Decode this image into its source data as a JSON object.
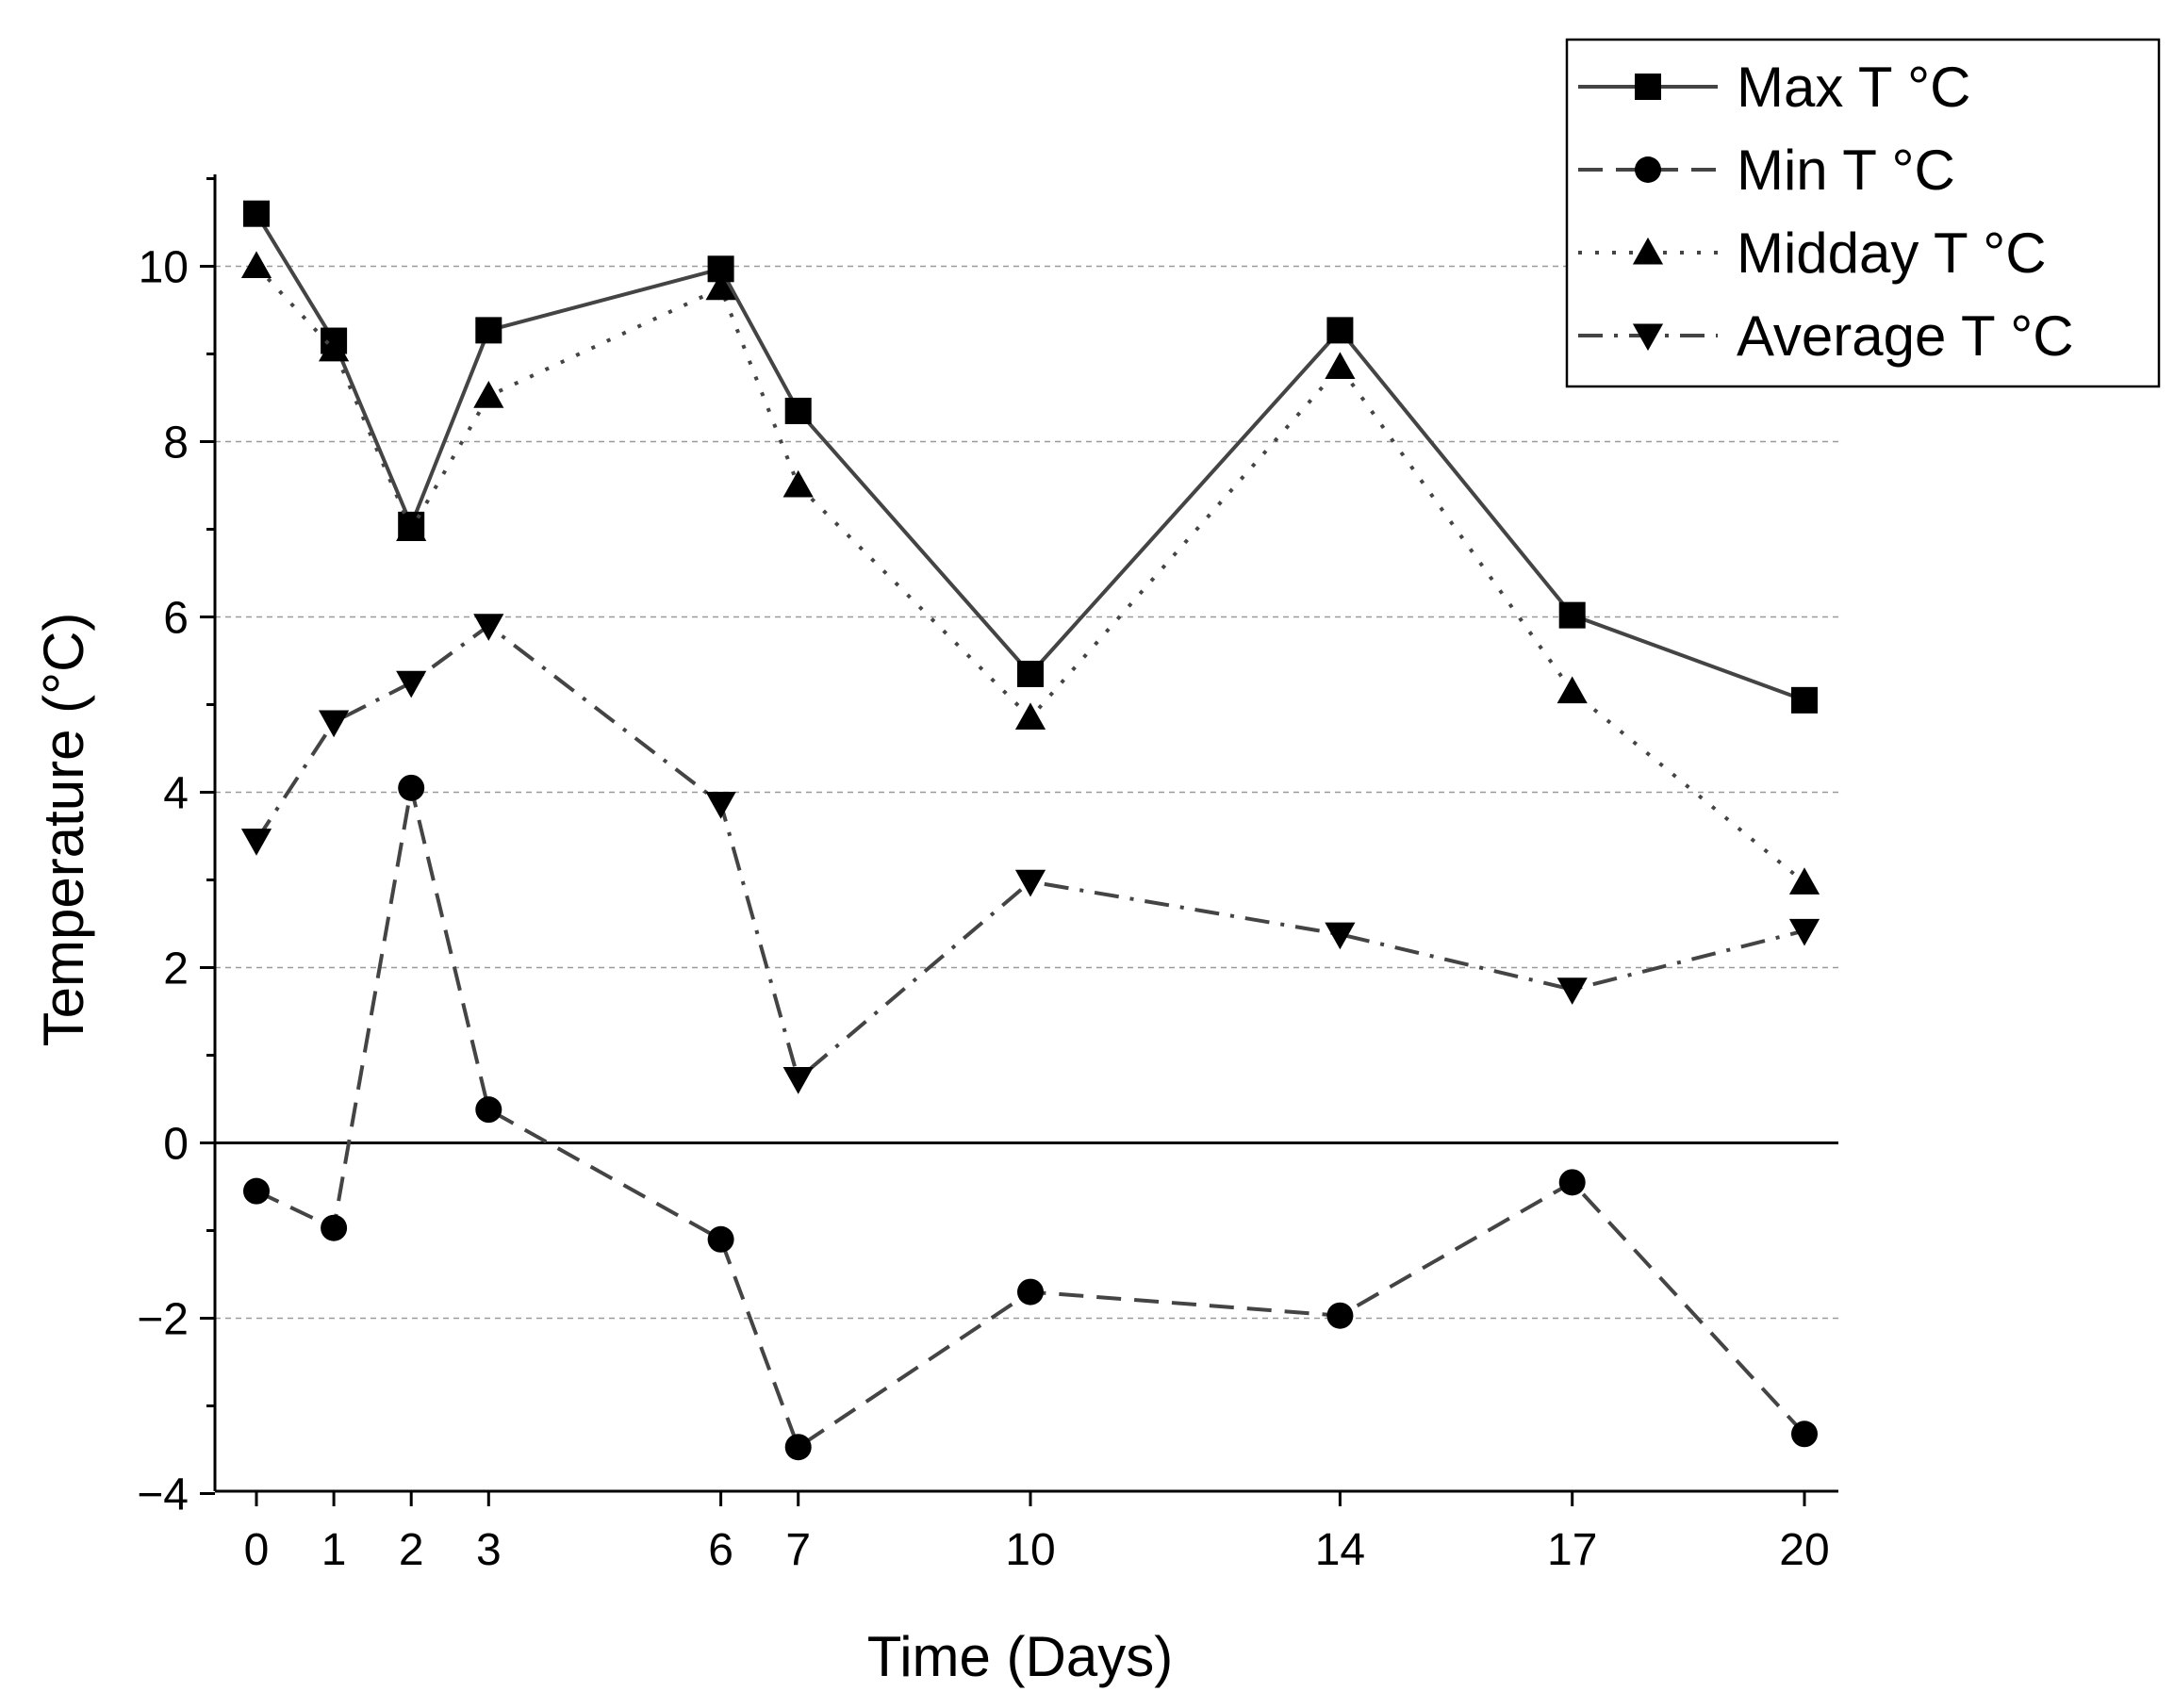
{
  "chart_data": {
    "type": "line",
    "xlabel": "Time (Days)",
    "ylabel": "Temperature (°C)",
    "x": [
      0,
      1,
      2,
      3,
      6,
      7,
      10,
      14,
      17,
      20
    ],
    "x_ticks": [
      0,
      1,
      2,
      3,
      6,
      7,
      10,
      14,
      17,
      20
    ],
    "xlim": [
      -0.5,
      20.5
    ],
    "ylim": [
      -4,
      11
    ],
    "y_ticks": [
      -4,
      -2,
      0,
      2,
      4,
      6,
      8,
      10
    ],
    "y_tick_labels": [
      "−4",
      "−2",
      "0",
      "2",
      "4",
      "6",
      "8",
      "10"
    ],
    "grid": "horizontal dashed",
    "legend_position": "top-right",
    "series": [
      {
        "name": "Max T °C",
        "marker": "square",
        "line": "solid",
        "color": "#444444",
        "values": [
          10.6,
          9.15,
          7.05,
          9.27,
          9.97,
          8.35,
          5.35,
          9.27,
          6.02,
          5.05
        ]
      },
      {
        "name": "Min T °C",
        "marker": "circle",
        "line": "dashed",
        "color": "#444444",
        "values": [
          -0.55,
          -0.97,
          4.05,
          0.38,
          -1.1,
          -3.47,
          -1.7,
          -1.97,
          -0.45,
          -3.32
        ]
      },
      {
        "name": "Midday T °C",
        "marker": "triangle-up",
        "line": "dotted",
        "color": "#444444",
        "values": [
          10.0,
          9.05,
          7.0,
          8.52,
          9.75,
          7.5,
          4.85,
          8.85,
          5.15,
          2.97
        ]
      },
      {
        "name": "Average T °C",
        "marker": "triangle-down",
        "line": "dash-dot",
        "color": "#444444",
        "values": [
          3.45,
          4.8,
          5.25,
          5.9,
          3.87,
          0.73,
          2.98,
          2.38,
          1.75,
          2.42
        ]
      }
    ]
  }
}
